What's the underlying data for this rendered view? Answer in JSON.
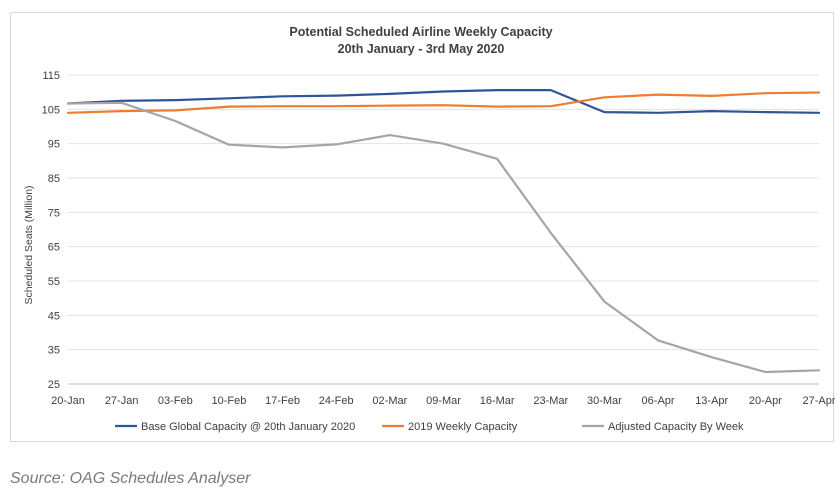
{
  "chart_data": {
    "type": "line",
    "title": "Potential Scheduled Airline Weekly Capacity",
    "subtitle": "20th January - 3rd May 2020",
    "ylabel": "Scheduled Seats (Million)",
    "xlabel": "",
    "ylim": [
      25,
      115
    ],
    "yticks": [
      115,
      105,
      95,
      85,
      75,
      65,
      55,
      45,
      35,
      25
    ],
    "grid": true,
    "legend_position": "bottom",
    "categories": [
      "20-Jan",
      "27-Jan",
      "03-Feb",
      "10-Feb",
      "17-Feb",
      "24-Feb",
      "02-Mar",
      "09-Mar",
      "16-Mar",
      "23-Mar",
      "30-Mar",
      "06-Apr",
      "13-Apr",
      "20-Apr",
      "27-Apr"
    ],
    "series": [
      {
        "name": "Base Global Capacity @ 20th January 2020",
        "color": "#2e5597",
        "values": [
          106.7,
          107.5,
          107.7,
          108.2,
          108.8,
          109.0,
          109.5,
          110.2,
          110.6,
          110.6,
          104.2,
          104.0,
          104.5,
          104.2,
          104.0
        ]
      },
      {
        "name": "2019 Weekly Capacity",
        "color": "#ed7d31",
        "values": [
          104.0,
          104.5,
          104.7,
          105.8,
          105.9,
          105.9,
          106.1,
          106.2,
          105.8,
          105.9,
          108.5,
          109.3,
          108.9,
          109.7,
          109.9
        ]
      },
      {
        "name": "Adjusted Capacity By Week",
        "color": "#a5a5a5",
        "values": [
          106.7,
          106.9,
          101.6,
          94.7,
          93.9,
          94.8,
          97.5,
          95.0,
          90.6,
          69.0,
          49.0,
          37.7,
          32.8,
          28.5,
          29.0
        ]
      }
    ]
  },
  "source": "Source: OAG Schedules Analyser"
}
